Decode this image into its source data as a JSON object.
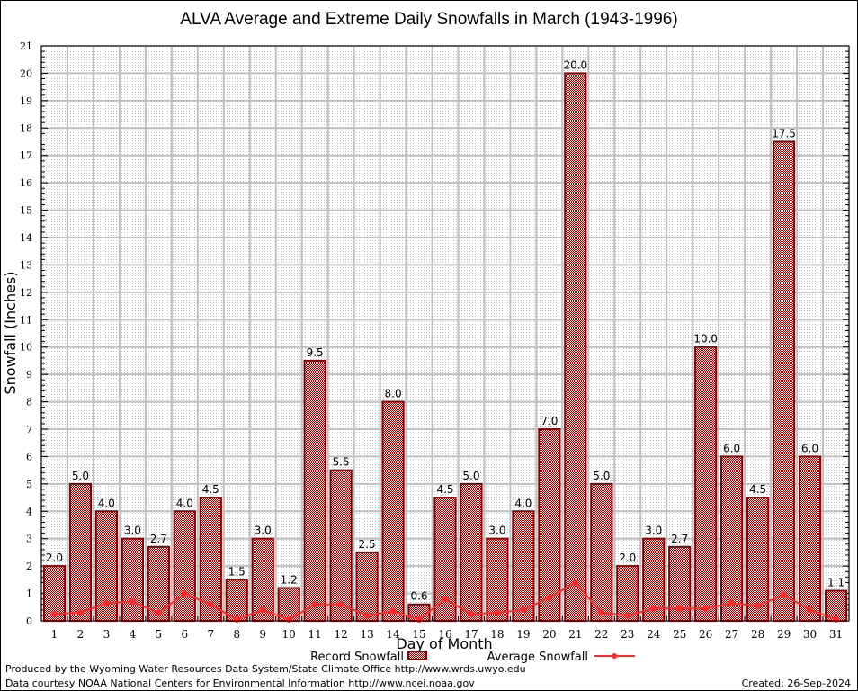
{
  "chart_data": {
    "type": "bar",
    "title": "ALVA Average and Extreme Daily Snowfalls in March (1943-1996)",
    "xlabel": "Day of Month",
    "ylabel": "Snowfall (Inches)",
    "ylim": [
      0,
      21
    ],
    "yticks": [
      0,
      1,
      2,
      3,
      4,
      5,
      6,
      7,
      8,
      9,
      10,
      11,
      12,
      13,
      14,
      15,
      16,
      17,
      18,
      19,
      20,
      21
    ],
    "grid": true,
    "legend_position": "bottom-center",
    "categories": [
      "1",
      "2",
      "3",
      "4",
      "5",
      "6",
      "7",
      "8",
      "9",
      "10",
      "11",
      "12",
      "13",
      "14",
      "15",
      "16",
      "17",
      "18",
      "19",
      "20",
      "21",
      "22",
      "23",
      "24",
      "25",
      "26",
      "27",
      "28",
      "29",
      "30",
      "31"
    ],
    "series": [
      {
        "name": "Record Snowfall",
        "type": "bar",
        "color": "#8b0000",
        "values": [
          2.0,
          5.0,
          4.0,
          3.0,
          2.7,
          4.0,
          4.5,
          1.5,
          3.0,
          1.2,
          9.5,
          5.5,
          2.5,
          8.0,
          0.6,
          4.5,
          5.0,
          3.0,
          4.0,
          7.0,
          20.0,
          5.0,
          2.0,
          3.0,
          2.7,
          10.0,
          6.0,
          4.5,
          17.5,
          6.0,
          1.1
        ],
        "labels": [
          "2.0",
          "5.0",
          "4.0",
          "3.0",
          "2.7",
          "4.0",
          "4.5",
          "1.5",
          "3.0",
          "1.2",
          "9.5",
          "5.5",
          "2.5",
          "8.0",
          "0.6",
          "4.5",
          "5.0",
          "3.0",
          "4.0",
          "7.0",
          "20.0",
          "5.0",
          "2.0",
          "3.0",
          "2.7",
          "10.0",
          "6.0",
          "4.5",
          "17.5",
          "6.0",
          "1.1"
        ]
      },
      {
        "name": "Average Snowfall",
        "type": "line",
        "color": "#ff2a2a",
        "values": [
          0.25,
          0.3,
          0.65,
          0.7,
          0.3,
          1.0,
          0.6,
          0.05,
          0.4,
          0.05,
          0.6,
          0.6,
          0.2,
          0.35,
          0.05,
          0.8,
          0.25,
          0.3,
          0.4,
          0.85,
          1.4,
          0.3,
          0.2,
          0.45,
          0.45,
          0.45,
          0.65,
          0.55,
          0.95,
          0.4,
          0.05
        ]
      }
    ]
  },
  "footer": {
    "produced_by": "Produced by the Wyoming Water Resources Data System/State Climate Office http://www.wrds.uwyo.edu",
    "data_courtesy": "Data courtesy NOAA National Centers for Environmental Information http://www.ncei.noaa.gov",
    "created": "Created: 26-Sep-2024"
  }
}
